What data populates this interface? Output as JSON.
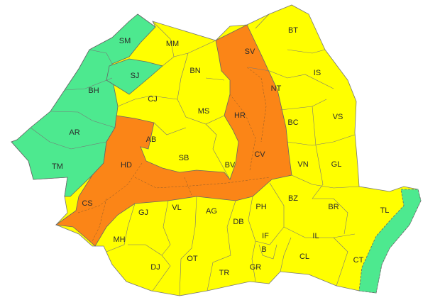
{
  "legend_colors": {
    "green": "#4de98f",
    "yellow": "#ffff00",
    "orange": "#fb8517"
  },
  "counties": [
    {
      "code": "SM",
      "level": "green"
    },
    {
      "code": "MM",
      "level": "yellow"
    },
    {
      "code": "BT",
      "level": "yellow"
    },
    {
      "code": "SV",
      "level": "orange"
    },
    {
      "code": "SJ",
      "level": "green"
    },
    {
      "code": "BN",
      "level": "yellow"
    },
    {
      "code": "IS",
      "level": "yellow"
    },
    {
      "code": "BH",
      "level": "green"
    },
    {
      "code": "NT",
      "level": "orange"
    },
    {
      "code": "CJ",
      "level": "yellow"
    },
    {
      "code": "MS",
      "level": "yellow"
    },
    {
      "code": "HR",
      "level": "orange"
    },
    {
      "code": "BC",
      "level": "yellow"
    },
    {
      "code": "VS",
      "level": "yellow"
    },
    {
      "code": "AR",
      "level": "green"
    },
    {
      "code": "AB",
      "level": "orange"
    },
    {
      "code": "SB",
      "level": "yellow"
    },
    {
      "code": "BV",
      "level": "yellow"
    },
    {
      "code": "CV",
      "level": "orange"
    },
    {
      "code": "VN",
      "level": "yellow"
    },
    {
      "code": "GL",
      "level": "yellow"
    },
    {
      "code": "TM",
      "level": "green"
    },
    {
      "code": "HD",
      "level": "orange"
    },
    {
      "code": "CS",
      "level": "orange"
    },
    {
      "code": "GJ",
      "level": "yellow"
    },
    {
      "code": "VL",
      "level": "yellow"
    },
    {
      "code": "AG",
      "level": "yellow"
    },
    {
      "code": "PH",
      "level": "yellow"
    },
    {
      "code": "BZ",
      "level": "yellow"
    },
    {
      "code": "BR",
      "level": "yellow"
    },
    {
      "code": "TL",
      "level": "yellow"
    },
    {
      "code": "DB",
      "level": "yellow"
    },
    {
      "code": "MH",
      "level": "yellow"
    },
    {
      "code": "IF",
      "level": "yellow"
    },
    {
      "code": "B",
      "level": "yellow"
    },
    {
      "code": "IL",
      "level": "yellow"
    },
    {
      "code": "CL",
      "level": "yellow"
    },
    {
      "code": "CT",
      "level": "yellow"
    },
    {
      "code": "DJ",
      "level": "yellow"
    },
    {
      "code": "OT",
      "level": "yellow"
    },
    {
      "code": "TR",
      "level": "yellow"
    },
    {
      "code": "GR",
      "level": "yellow"
    }
  ]
}
